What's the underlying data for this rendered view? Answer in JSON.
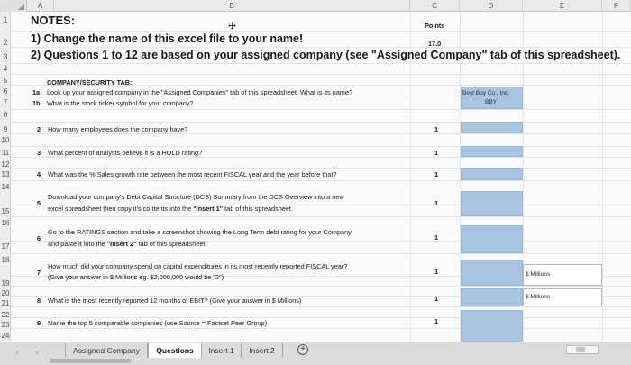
{
  "columns": [
    "A",
    "B",
    "C",
    "D",
    "E",
    "F"
  ],
  "rows": [
    "1",
    "2",
    "3",
    "4",
    "5",
    "6",
    "7",
    "8",
    "9",
    "10",
    "11",
    "12",
    "13",
    "14",
    "15",
    "16",
    "17",
    "18",
    "19",
    "20",
    "21",
    "22",
    "23",
    "24"
  ],
  "header": {
    "notes": "NOTES:",
    "points_label": "Points",
    "note1": "1) Change the name of this excel file to your name!",
    "note1_points": "17.0",
    "note2": "2)  Questions 1 to 12 are based on your assigned company (see \"Assigned Company\" tab of this spreadsheet)."
  },
  "section_title": "COMPANY/SECURITY TAB:",
  "questions": {
    "q1a_num": "1a",
    "q1a_text": "Look up your assigned company in the \"Assigned Companies\" tab of this spreadsheet.  What is its name?",
    "q1a_answer": "Best Buy Co., Inc.",
    "q1b_num": "1b",
    "q1b_text": "What is the stock ticker symbol for your company?",
    "q1b_answer": "BBY",
    "q2_num": "2",
    "q2_text": "How many employees does the company have?",
    "q2_points": "1",
    "q3_num": "3",
    "q3_text": "What percent of analysts believe it is a HOLD rating?",
    "q3_points": "1",
    "q4_num": "4",
    "q4_text": "What was the % Sales growth rate between the most recent FISCAL year and the year before that?",
    "q4_points": "1",
    "q5_num": "5",
    "q5_line1": "Download your company's Debt Capital Structure (DCS) Summary from the DCS Overview into a new",
    "q5_line2_a": "excel spreadsheet then copy it's contents into the ",
    "q5_line2_b": "\"Insert 1\"",
    "q5_line2_c": " tab of this spreadsheet.",
    "q5_points": "1",
    "q6_num": "6",
    "q6_line1": "Go to the RATINGS section and take a screenshot showing the Long Term  debt rating for your Company",
    "q6_line2_a": "and paste it into the ",
    "q6_line2_b": "\"Insert 2\"",
    "q6_line2_c": " tab of this spreadsheet.",
    "q6_points": "1",
    "q7_num": "7",
    "q7_line1": "How much did your company spend on capital expenditures in its most recently reported FISCAL year?",
    "q7_line2": "(Give your answer in $ Millions eg. $2,000,000 would be \"2\")",
    "q7_points": "1",
    "q7_unit": "$ Millions",
    "q8_num": "8",
    "q8_text": "What is the most recently reported 12 months of EBIT? (Give your answer in $ Millions)",
    "q8_points": "1",
    "q8_unit": "$ Millions",
    "q9_num": "9",
    "q9_text": "Name the top 5 comparable companies (use Source = Factset Peer Group)",
    "q9_points": "1"
  },
  "tabs": [
    "Assigned Company",
    "Questions",
    "Insert 1",
    "Insert 2"
  ],
  "active_tab": "Questions",
  "add_sheet_icon": "plus-icon",
  "colors": {
    "answer_fill": "#a9c4e0",
    "grid": "#e3e3e3"
  }
}
